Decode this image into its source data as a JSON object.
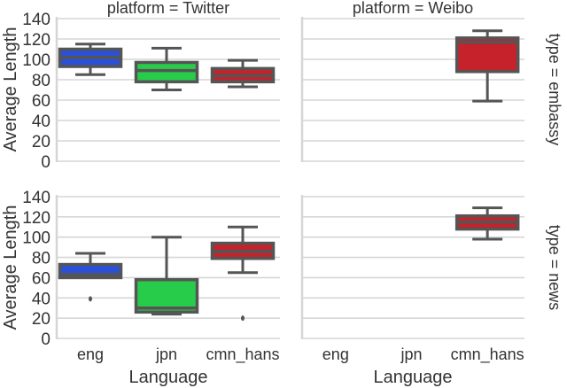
{
  "chart_data": {
    "type": "box",
    "layout": "facet-grid 2 rows x 2 cols",
    "row_facet": "type",
    "col_facet": "platform",
    "xlabel": "Language",
    "ylabel": "Average Length",
    "ylim": [
      0,
      140
    ],
    "yticks": [
      0,
      20,
      40,
      60,
      80,
      100,
      120,
      140
    ],
    "categories": [
      "eng",
      "jpn",
      "cmn_hans"
    ],
    "colors": {
      "eng": "#2a50d8",
      "jpn": "#28cc4b",
      "cmn_hans": "#c5222b"
    },
    "grid": true,
    "panels": [
      {
        "title": "platform = Twitter",
        "row_label": "",
        "platform": "Twitter",
        "type": "embassy",
        "boxes": [
          {
            "category": "eng",
            "whisker_low": 85,
            "q1": 93,
            "median": 102,
            "q3": 110,
            "whisker_high": 115,
            "outliers": []
          },
          {
            "category": "jpn",
            "whisker_low": 70,
            "q1": 78,
            "median": 89,
            "q3": 97,
            "whisker_high": 111,
            "outliers": []
          },
          {
            "category": "cmn_hans",
            "whisker_low": 73,
            "q1": 78,
            "median": 84,
            "q3": 91,
            "whisker_high": 99,
            "outliers": []
          }
        ]
      },
      {
        "title": "platform = Weibo",
        "row_label": "type = embassy",
        "platform": "Weibo",
        "type": "embassy",
        "boxes": [
          {
            "category": "cmn_hans",
            "whisker_low": 59,
            "q1": 88,
            "median": 117,
            "q3": 121,
            "whisker_high": 128,
            "outliers": []
          }
        ]
      },
      {
        "title": "",
        "row_label": "",
        "platform": "Twitter",
        "type": "news",
        "boxes": [
          {
            "category": "eng",
            "whisker_low": 60,
            "q1": 60,
            "median": 63,
            "q3": 73,
            "whisker_high": 84,
            "outliers": [
              39
            ]
          },
          {
            "category": "jpn",
            "whisker_low": 24,
            "q1": 26,
            "median": 30,
            "q3": 58,
            "whisker_high": 100,
            "outliers": []
          },
          {
            "category": "cmn_hans",
            "whisker_low": 65,
            "q1": 79,
            "median": 86,
            "q3": 94,
            "whisker_high": 110,
            "outliers": [
              20
            ]
          }
        ]
      },
      {
        "title": "",
        "row_label": "type = news",
        "platform": "Weibo",
        "type": "news",
        "boxes": [
          {
            "category": "cmn_hans",
            "whisker_low": 98,
            "q1": 108,
            "median": 115,
            "q3": 121,
            "whisker_high": 129,
            "outliers": []
          }
        ]
      }
    ]
  },
  "labels": {
    "col_titles": [
      "platform = Twitter",
      "platform = Weibo"
    ],
    "row_titles": [
      "type = embassy",
      "type = news"
    ],
    "ylabel": "Average Length",
    "xlabel": "Language",
    "xticks": [
      "eng",
      "jpn",
      "cmn_hans"
    ],
    "yticks": [
      "0",
      "20",
      "40",
      "60",
      "80",
      "100",
      "120",
      "140"
    ]
  },
  "style": {
    "grid_color": "#d6d6d6",
    "edge_color": "#555555",
    "text_color": "#333333"
  }
}
